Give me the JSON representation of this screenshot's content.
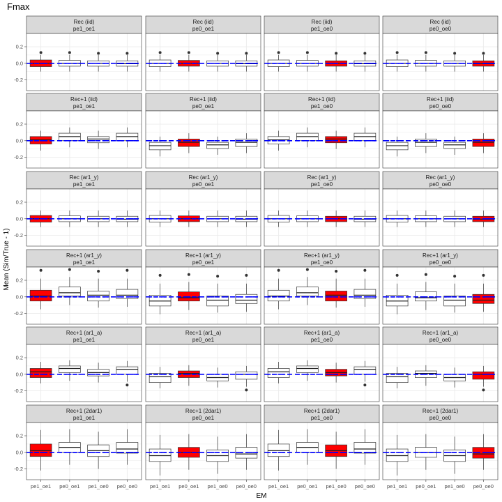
{
  "chart_data": {
    "type": "boxplot",
    "title": "Fmax",
    "xlabel": "EM",
    "ylabel": "Mean (Sim/True - 1)",
    "ylim": [
      -0.33,
      0.36
    ],
    "yticks": [
      -0.2,
      -0.1,
      0.0,
      0.1,
      0.2
    ],
    "ytick_labels": [
      "-0.2",
      "",
      "0.0",
      "",
      "0.2"
    ],
    "categories": [
      "pe1_oe1",
      "pe0_oe1",
      "pe1_oe0",
      "pe0_oe0"
    ],
    "reference_line": 0,
    "colors": {
      "highlight": "#ff0000",
      "normal": "#ffffff",
      "mean_line": "#0000ff",
      "strip": "#d9d9d9",
      "panel_border": "#333333",
      "grid": "#ebebeb"
    },
    "rows": [
      {
        "model": "Rec (iid)",
        "stats": [
          [
            [
              -0.1,
              -0.04,
              0.0,
              0.04,
              0.1,
              [
                0.13
              ]
            ],
            [
              -0.1,
              -0.035,
              0.0,
              0.035,
              0.1,
              [
                0.13
              ]
            ],
            [
              -0.1,
              -0.035,
              0.0,
              0.03,
              0.1,
              [
                0.12
              ]
            ],
            [
              -0.1,
              -0.035,
              -0.005,
              0.03,
              0.1,
              [
                0.12
              ]
            ]
          ]
        ]
      },
      {
        "model": "Rec+1 (iid)",
        "stats": [
          [
            [
              -0.12,
              -0.04,
              0.01,
              0.05,
              0.12,
              []
            ],
            [
              -0.08,
              0.0,
              0.05,
              0.09,
              0.16,
              []
            ],
            [
              -0.1,
              -0.025,
              0.02,
              0.05,
              0.12,
              []
            ],
            [
              -0.08,
              0.0,
              0.05,
              0.09,
              0.16,
              []
            ]
          ]
        ]
      },
      {
        "model": "Rec (ar1_y)",
        "stats": [
          [
            [
              -0.1,
              -0.04,
              0.0,
              0.04,
              0.1,
              []
            ],
            [
              -0.1,
              -0.035,
              0.0,
              0.035,
              0.1,
              []
            ],
            [
              -0.1,
              -0.035,
              0.0,
              0.03,
              0.1,
              []
            ],
            [
              -0.1,
              -0.035,
              -0.005,
              0.03,
              0.1,
              []
            ]
          ]
        ]
      },
      {
        "model": "Rec+1 (ar1_y)",
        "stats": [
          [
            [
              -0.15,
              -0.05,
              0.01,
              0.08,
              0.22,
              [
                0.32
              ]
            ],
            [
              -0.1,
              0.01,
              0.05,
              0.12,
              0.24,
              [
                0.33
              ]
            ],
            [
              -0.13,
              -0.05,
              0.02,
              0.07,
              0.22,
              [
                0.31
              ]
            ],
            [
              -0.12,
              -0.02,
              0.02,
              0.09,
              0.22,
              [
                0.32
              ]
            ]
          ]
        ]
      },
      {
        "model": "Rec+1 (ar1_a)",
        "stats": [
          [
            [
              -0.11,
              -0.04,
              0.03,
              0.07,
              0.15,
              []
            ],
            [
              -0.08,
              0.02,
              0.07,
              0.1,
              0.17,
              []
            ],
            [
              -0.1,
              -0.02,
              0.02,
              0.06,
              0.14,
              []
            ],
            [
              -0.09,
              0.0,
              0.06,
              0.09,
              0.16,
              [
                -0.13
              ]
            ]
          ]
        ]
      },
      {
        "model": "Rec+1 (2dar1)",
        "stats": [
          [
            [
              -0.22,
              -0.05,
              0.02,
              0.1,
              0.27,
              []
            ],
            [
              -0.15,
              0.0,
              0.06,
              0.12,
              0.28,
              []
            ],
            [
              -0.2,
              -0.05,
              0.02,
              0.09,
              0.25,
              []
            ],
            [
              -0.15,
              -0.01,
              0.04,
              0.12,
              0.28,
              []
            ]
          ]
        ]
      }
    ],
    "columns": [
      {
        "scenario": "pe1_oe1",
        "highlight_index": 0
      },
      {
        "scenario": "pe0_oe1",
        "highlight_index": 1
      },
      {
        "scenario": "pe1_oe0",
        "highlight_index": 2
      },
      {
        "scenario": "pe0_oe0",
        "highlight_index": 3
      }
    ],
    "strip_rows": [
      [
        "Rec (iid)",
        "Rec (iid)",
        "Rec (iid)",
        "Rec (iid)"
      ],
      [
        "Rec+1 (iid)",
        "Rec+1 (iid)",
        "Rec+1 (iid)",
        "Rec+1 (iid)"
      ],
      [
        "Rec (ar1_y)",
        "Rec (ar1_y)",
        "Rec (ar1_y)",
        "Rec (ar1_y)"
      ],
      [
        "Rec+1 (ar1_y)",
        "Rec+1 (ar1_y)",
        "Rec+1 (ar1_y)",
        "Rec+1 (ar1_y)"
      ],
      [
        "Rec+1 (ar1_a)",
        "Rec+1 (ar1_a)",
        "Rec+1 (ar1_a)",
        "Rec+1 (ar1_a)"
      ],
      [
        "Rec+1 (2dar1)",
        "Rec+1 (2dar1)",
        "Rec+1 (2dar1)",
        "Rec+1 (2dar1)"
      ]
    ],
    "column_shift": [
      [
        0.0,
        0.0,
        0.0,
        0.0
      ],
      [
        0.0,
        -0.07,
        0.0,
        -0.07
      ],
      [
        0.0,
        0.0,
        0.0,
        0.0
      ],
      [
        0.0,
        -0.06,
        0.0,
        -0.06
      ],
      [
        0.0,
        -0.06,
        0.0,
        -0.06
      ],
      [
        0.0,
        -0.06,
        0.0,
        -0.06
      ]
    ]
  }
}
